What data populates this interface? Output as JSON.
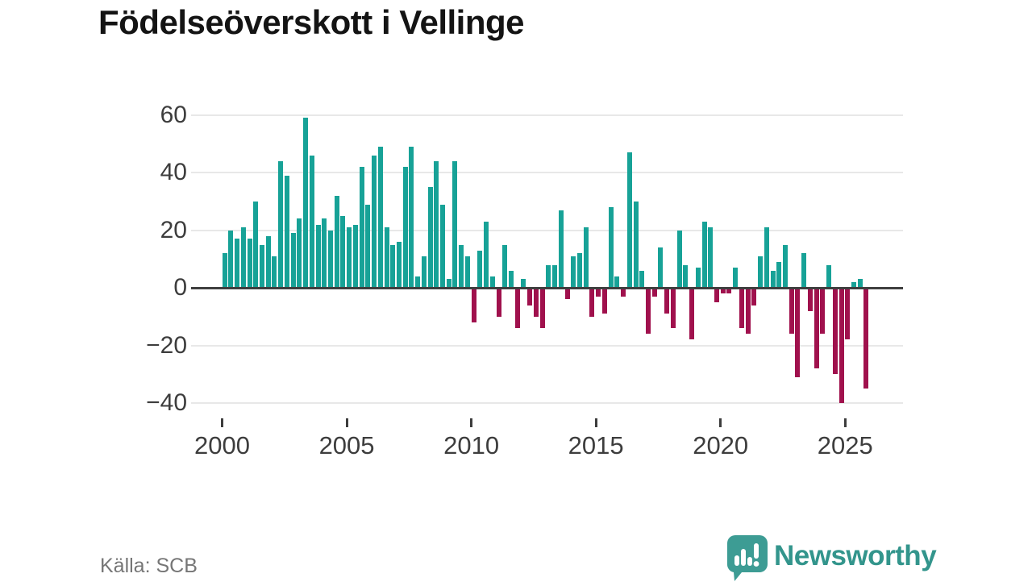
{
  "title": "Födelseöverskott i Vellinge",
  "source": "Källa: SCB",
  "branding": {
    "name": "Newsworthy"
  },
  "chart_data": {
    "type": "bar",
    "title": "Födelseöverskott i Vellinge",
    "frequency": "quarterly",
    "start": "2000-Q1",
    "end": "2025-Q4",
    "x_tick_labels": [
      "2000",
      "2005",
      "2010",
      "2015",
      "2020",
      "2025"
    ],
    "y_tick_labels": [
      "60",
      "40",
      "20",
      "0",
      "−20",
      "−40"
    ],
    "y_ticks": [
      60,
      40,
      20,
      0,
      -20,
      -40
    ],
    "ylim": [
      -45,
      65
    ],
    "grid": "horizontal",
    "positive_color": "#17a297",
    "negative_color": "#a0114d",
    "values_by_year": {
      "2000": [
        12,
        20,
        17,
        21
      ],
      "2001": [
        17,
        30,
        15,
        18
      ],
      "2002": [
        11,
        44,
        39,
        19
      ],
      "2003": [
        24,
        59,
        46,
        22
      ],
      "2004": [
        24,
        20,
        32,
        25
      ],
      "2005": [
        21,
        22,
        42,
        29
      ],
      "2006": [
        46,
        49,
        21,
        15
      ],
      "2007": [
        16,
        42,
        49,
        4
      ],
      "2008": [
        11,
        35,
        44,
        29
      ],
      "2009": [
        3,
        44,
        15,
        11
      ],
      "2010": [
        -12,
        13,
        23,
        4
      ],
      "2011": [
        -10,
        15,
        6,
        -14
      ],
      "2012": [
        3,
        -6,
        -10,
        -14
      ],
      "2013": [
        8,
        8,
        27,
        -4
      ],
      "2014": [
        11,
        12,
        21,
        -10
      ],
      "2015": [
        -3,
        -9,
        28,
        4
      ],
      "2016": [
        -3,
        47,
        30,
        6
      ],
      "2017": [
        -16,
        -3,
        14,
        -9
      ],
      "2018": [
        -14,
        20,
        8,
        -18
      ],
      "2019": [
        7,
        23,
        21,
        -5
      ],
      "2020": [
        -2,
        -2,
        7,
        -14
      ],
      "2021": [
        -16,
        -6,
        11,
        21
      ],
      "2022": [
        6,
        9,
        15,
        -16
      ],
      "2023": [
        -31,
        12,
        -8,
        -28
      ],
      "2024": [
        -16,
        8,
        -30,
        -40
      ],
      "2025": [
        -18,
        2,
        3,
        -35
      ]
    }
  }
}
